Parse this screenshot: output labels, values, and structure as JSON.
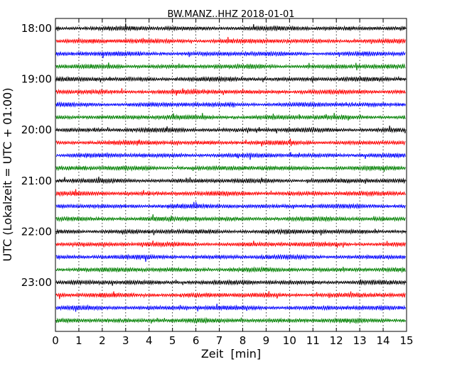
{
  "chart_data": {
    "type": "line",
    "title": "BW.MANZ..HHZ 2018-01-01",
    "xlabel": "Zeit  [min]",
    "ylabel": "UTC (Lokalzeit = UTC + 01:00)",
    "xlim": [
      0,
      15
    ],
    "x_ticks": [
      "0",
      "1",
      "2",
      "3",
      "4",
      "5",
      "6",
      "7",
      "8",
      "9",
      "10",
      "11",
      "12",
      "13",
      "14",
      "15"
    ],
    "y_tick_labels": [
      "18:00",
      "19:00",
      "20:00",
      "21:00",
      "22:00",
      "23:00"
    ],
    "grid": "vertical dotted",
    "trace_interval_minutes": 15,
    "traces_start": "18:00",
    "traces_end": "23:45",
    "trace_count": 24,
    "color_cycle": [
      "#000000",
      "#ff0000",
      "#0000ff",
      "#008000"
    ]
  }
}
